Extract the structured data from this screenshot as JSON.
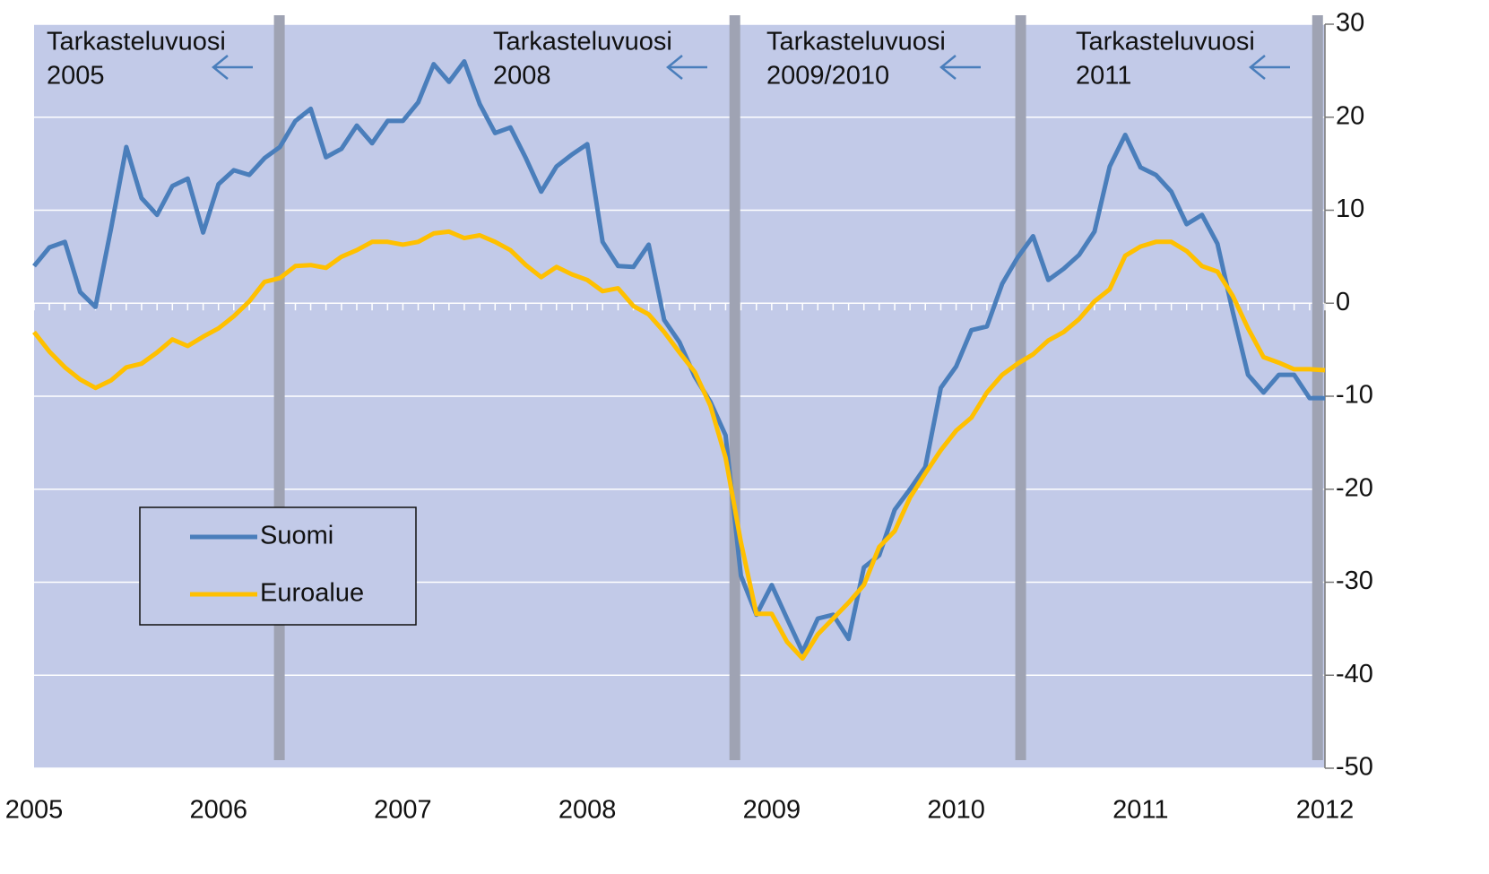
{
  "chart_data": {
    "type": "line",
    "annotations": [
      [
        "Tarkasteluvuosi",
        "2005"
      ],
      [
        "Tarkasteluvuosi",
        "2008"
      ],
      [
        "Tarkasteluvuosi",
        "2009/2010"
      ],
      [
        "Tarkasteluvuosi",
        "2011"
      ]
    ],
    "x": [
      2005,
      2005.083,
      2005.167,
      2005.25,
      2005.333,
      2005.417,
      2005.5,
      2005.583,
      2005.667,
      2005.75,
      2005.833,
      2005.917,
      2006,
      2006.083,
      2006.167,
      2006.25,
      2006.333,
      2006.417,
      2006.5,
      2006.583,
      2006.667,
      2006.75,
      2006.833,
      2006.917,
      2007,
      2007.083,
      2007.167,
      2007.25,
      2007.333,
      2007.417,
      2007.5,
      2007.583,
      2007.667,
      2007.75,
      2007.833,
      2007.917,
      2008,
      2008.083,
      2008.167,
      2008.25,
      2008.333,
      2008.417,
      2008.5,
      2008.583,
      2008.667,
      2008.75,
      2008.833,
      2008.917,
      2009,
      2009.083,
      2009.167,
      2009.25,
      2009.333,
      2009.417,
      2009.5,
      2009.583,
      2009.667,
      2009.75,
      2009.833,
      2009.917,
      2010,
      2010.083,
      2010.167,
      2010.25,
      2010.333,
      2010.417,
      2010.5,
      2010.583,
      2010.667,
      2010.75,
      2010.833,
      2010.917,
      2011,
      2011.083,
      2011.167,
      2011.25,
      2011.333,
      2011.417,
      2011.5,
      2011.583,
      2011.667,
      2011.75,
      2011.833,
      2011.917,
      2012
    ],
    "series": [
      {
        "name": "Suomi",
        "color": "#4a7ebb",
        "values": [
          4,
          6,
          6.6,
          1.2,
          -0.4,
          8,
          16.8,
          11.3,
          9.5,
          12.6,
          13.4,
          7.6,
          12.8,
          14.3,
          13.8,
          15.6,
          16.8,
          19.6,
          20.9,
          15.7,
          16.6,
          19.1,
          17.2,
          19.6,
          19.6,
          21.6,
          25.7,
          23.8,
          26,
          21.4,
          18.3,
          18.9,
          15.6,
          12,
          14.7,
          16,
          17.1,
          6.6,
          4,
          3.9,
          6.3,
          -1.8,
          -4.2,
          -7.9,
          -10.6,
          -14.2,
          -29.3,
          -33.5,
          -30.3,
          -33.9,
          -37.5,
          -33.9,
          -33.5,
          -36.1,
          -28.4,
          -27.1,
          -22.2,
          -20,
          -17.6,
          -9.1,
          -6.8,
          -2.9,
          -2.5,
          2.1,
          4.9,
          7.2,
          2.5,
          3.7,
          5.2,
          7.7,
          14.7,
          18.1,
          14.6,
          13.8,
          12,
          8.5,
          9.5,
          6.4,
          -0.9,
          -7.7,
          -9.6,
          -7.7,
          -7.7,
          -10.2,
          -10.2
        ]
      },
      {
        "name": "Euroalue",
        "color": "#ffc000",
        "values": [
          -3.1,
          -5.2,
          -6.9,
          -8.2,
          -9.1,
          -8.3,
          -6.9,
          -6.5,
          -5.3,
          -3.9,
          -4.6,
          -3.6,
          -2.7,
          -1.4,
          0.2,
          2.3,
          2.7,
          4,
          4.1,
          3.8,
          5,
          5.7,
          6.6,
          6.6,
          6.3,
          6.6,
          7.5,
          7.7,
          7,
          7.3,
          6.6,
          5.7,
          4.1,
          2.8,
          3.9,
          3.1,
          2.5,
          1.3,
          1.6,
          -0.3,
          -1.2,
          -3.1,
          -5.3,
          -7.4,
          -11,
          -16.6,
          -25.7,
          -33.4,
          -33.4,
          -36.4,
          -38.2,
          -35.6,
          -33.9,
          -32.2,
          -30.3,
          -26.2,
          -24.5,
          -20.9,
          -18.3,
          -15.8,
          -13.7,
          -12.3,
          -9.6,
          -7.7,
          -6.5,
          -5.5,
          -4,
          -3.1,
          -1.7,
          0.2,
          1.5,
          5.1,
          6.1,
          6.6,
          6.6,
          5.6,
          4,
          3.4,
          0.8,
          -2.7,
          -5.8,
          -6.4,
          -7.1,
          -7.1,
          -7.2
        ]
      }
    ],
    "markers": [
      2006.33,
      2008.8,
      2010.35,
      2011.96
    ],
    "xlim": [
      2005,
      2012
    ],
    "xticks": [
      2005,
      2006,
      2007,
      2008,
      2009,
      2010,
      2011,
      2012
    ],
    "ylim": [
      -50,
      30
    ],
    "yticks": [
      -50,
      -40,
      -30,
      -20,
      -10,
      0,
      10,
      20,
      30
    ],
    "y_axis_side": "right",
    "grid": true,
    "background": "#c2cae8"
  }
}
